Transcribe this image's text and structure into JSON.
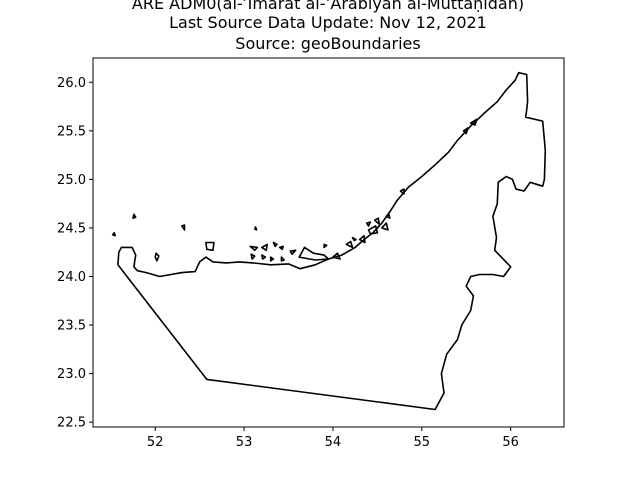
{
  "figure": {
    "title_lines": [
      "ARE ADM0(al-ʾImārāt al-ʿArabīyah al-Muttaḥidah)",
      "Last Source Data Update: Nov 12, 2021",
      "Source: geoBoundaries"
    ]
  },
  "chart_data": {
    "type": "map-outline",
    "xlim": [
      51.3,
      56.6
    ],
    "ylim": [
      22.45,
      26.25
    ],
    "x_ticks": [
      52,
      53,
      54,
      55,
      56
    ],
    "y_ticks": [
      22.5,
      23.0,
      23.5,
      24.0,
      24.5,
      25.0,
      25.5,
      26.0
    ],
    "x_tick_labels": [
      "52",
      "53",
      "54",
      "55",
      "56"
    ],
    "y_tick_labels": [
      "22.5",
      "23.0",
      "23.5",
      "24.0",
      "24.5",
      "25.0",
      "25.5",
      "26.0"
    ],
    "line_color": "#000000",
    "grid": false,
    "mainland": [
      [
        51.58,
        24.12
      ],
      [
        51.59,
        24.25
      ],
      [
        51.62,
        24.3
      ],
      [
        51.74,
        24.3
      ],
      [
        51.78,
        24.22
      ],
      [
        51.76,
        24.1
      ],
      [
        51.8,
        24.06
      ],
      [
        51.9,
        24.04
      ],
      [
        52.05,
        24.0
      ],
      [
        52.3,
        24.04
      ],
      [
        52.45,
        24.05
      ],
      [
        52.5,
        24.15
      ],
      [
        52.57,
        24.2
      ],
      [
        52.65,
        24.15
      ],
      [
        52.8,
        24.14
      ],
      [
        52.95,
        24.15
      ],
      [
        53.1,
        24.14
      ],
      [
        53.3,
        24.12
      ],
      [
        53.5,
        24.13
      ],
      [
        53.63,
        24.08
      ],
      [
        53.8,
        24.12
      ],
      [
        53.95,
        24.18
      ],
      [
        54.1,
        24.22
      ],
      [
        54.25,
        24.3
      ],
      [
        54.35,
        24.38
      ],
      [
        54.45,
        24.45
      ],
      [
        54.55,
        24.55
      ],
      [
        54.65,
        24.68
      ],
      [
        54.72,
        24.78
      ],
      [
        54.85,
        24.92
      ],
      [
        55.0,
        25.03
      ],
      [
        55.15,
        25.15
      ],
      [
        55.3,
        25.28
      ],
      [
        55.4,
        25.4
      ],
      [
        55.55,
        25.55
      ],
      [
        55.7,
        25.68
      ],
      [
        55.85,
        25.8
      ],
      [
        55.95,
        25.92
      ],
      [
        56.05,
        26.02
      ],
      [
        56.09,
        26.1
      ],
      [
        56.18,
        26.08
      ],
      [
        56.19,
        25.8
      ],
      [
        56.17,
        25.64
      ],
      [
        56.36,
        25.6
      ],
      [
        56.39,
        25.3
      ],
      [
        56.38,
        25.0
      ],
      [
        56.36,
        24.93
      ],
      [
        56.22,
        24.97
      ],
      [
        56.15,
        24.88
      ],
      [
        56.06,
        24.9
      ],
      [
        56.02,
        25.0
      ],
      [
        55.95,
        25.03
      ],
      [
        55.86,
        24.97
      ],
      [
        55.85,
        24.75
      ],
      [
        55.8,
        24.62
      ],
      [
        55.84,
        24.4
      ],
      [
        55.82,
        24.27
      ],
      [
        56.0,
        24.1
      ],
      [
        55.92,
        24.0
      ],
      [
        55.8,
        24.02
      ],
      [
        55.65,
        24.02
      ],
      [
        55.55,
        24.0
      ],
      [
        55.5,
        23.9
      ],
      [
        55.58,
        23.8
      ],
      [
        55.55,
        23.65
      ],
      [
        55.45,
        23.5
      ],
      [
        55.4,
        23.35
      ],
      [
        55.28,
        23.2
      ],
      [
        55.22,
        23.0
      ],
      [
        55.25,
        22.8
      ],
      [
        55.15,
        22.63
      ],
      [
        52.58,
        22.94
      ],
      [
        51.58,
        24.12
      ]
    ],
    "islands": [
      [
        [
          51.52,
          24.43
        ],
        [
          51.55,
          24.42
        ],
        [
          51.54,
          24.45
        ],
        [
          51.52,
          24.43
        ]
      ],
      [
        [
          51.75,
          24.6
        ],
        [
          51.78,
          24.61
        ],
        [
          51.76,
          24.64
        ],
        [
          51.75,
          24.6
        ]
      ],
      [
        [
          52.3,
          24.52
        ],
        [
          52.33,
          24.48
        ],
        [
          52.33,
          24.53
        ],
        [
          52.3,
          24.52
        ]
      ],
      [
        [
          52.01,
          24.24
        ],
        [
          52.04,
          24.21
        ],
        [
          52.02,
          24.16
        ],
        [
          52.0,
          24.2
        ],
        [
          52.01,
          24.24
        ]
      ],
      [
        [
          52.57,
          24.35
        ],
        [
          52.66,
          24.35
        ],
        [
          52.65,
          24.27
        ],
        [
          52.58,
          24.28
        ],
        [
          52.57,
          24.35
        ]
      ],
      [
        [
          53.07,
          24.31
        ],
        [
          53.15,
          24.3
        ],
        [
          53.12,
          24.27
        ],
        [
          53.07,
          24.31
        ]
      ],
      [
        [
          53.2,
          24.3
        ],
        [
          53.26,
          24.33
        ],
        [
          53.25,
          24.27
        ],
        [
          53.2,
          24.3
        ]
      ],
      [
        [
          53.33,
          24.35
        ],
        [
          53.37,
          24.33
        ],
        [
          53.35,
          24.31
        ],
        [
          53.33,
          24.35
        ]
      ],
      [
        [
          53.12,
          24.49
        ],
        [
          53.14,
          24.48
        ],
        [
          53.13,
          24.51
        ],
        [
          53.12,
          24.49
        ]
      ],
      [
        [
          53.4,
          24.3
        ],
        [
          53.44,
          24.31
        ],
        [
          53.43,
          24.28
        ],
        [
          53.4,
          24.3
        ]
      ],
      [
        [
          53.42,
          24.2
        ],
        [
          53.45,
          24.17
        ],
        [
          53.42,
          24.16
        ],
        [
          53.42,
          24.2
        ]
      ],
      [
        [
          53.52,
          24.26
        ],
        [
          53.58,
          24.27
        ],
        [
          53.54,
          24.23
        ],
        [
          53.52,
          24.26
        ]
      ],
      [
        [
          53.68,
          24.3
        ],
        [
          53.78,
          24.24
        ],
        [
          53.9,
          24.22
        ],
        [
          53.95,
          24.18
        ],
        [
          53.8,
          24.17
        ],
        [
          53.62,
          24.2
        ],
        [
          53.68,
          24.3
        ]
      ],
      [
        [
          53.9,
          24.33
        ],
        [
          53.93,
          24.32
        ],
        [
          53.9,
          24.3
        ],
        [
          53.9,
          24.33
        ]
      ],
      [
        [
          53.08,
          24.23
        ],
        [
          53.12,
          24.21
        ],
        [
          53.09,
          24.18
        ],
        [
          53.08,
          24.23
        ]
      ],
      [
        [
          53.2,
          24.22
        ],
        [
          53.24,
          24.2
        ],
        [
          53.21,
          24.18
        ],
        [
          53.2,
          24.22
        ]
      ],
      [
        [
          53.3,
          24.2
        ],
        [
          53.33,
          24.18
        ],
        [
          53.3,
          24.16
        ],
        [
          53.3,
          24.2
        ]
      ],
      [
        [
          54.0,
          24.2
        ],
        [
          54.05,
          24.24
        ],
        [
          54.08,
          24.18
        ],
        [
          54.0,
          24.2
        ]
      ],
      [
        [
          54.15,
          24.33
        ],
        [
          54.2,
          24.36
        ],
        [
          54.22,
          24.3
        ],
        [
          54.15,
          24.33
        ]
      ],
      [
        [
          54.22,
          24.4
        ],
        [
          54.26,
          24.38
        ],
        [
          54.24,
          24.37
        ],
        [
          54.22,
          24.4
        ]
      ],
      [
        [
          54.3,
          24.38
        ],
        [
          54.35,
          24.42
        ],
        [
          54.36,
          24.35
        ],
        [
          54.3,
          24.38
        ]
      ],
      [
        [
          54.4,
          24.48
        ],
        [
          54.48,
          24.52
        ],
        [
          54.5,
          24.45
        ],
        [
          54.42,
          24.44
        ],
        [
          54.4,
          24.48
        ]
      ],
      [
        [
          54.47,
          24.58
        ],
        [
          54.51,
          24.6
        ],
        [
          54.52,
          24.54
        ],
        [
          54.47,
          24.58
        ]
      ],
      [
        [
          54.55,
          24.5
        ],
        [
          54.6,
          24.55
        ],
        [
          54.62,
          24.48
        ],
        [
          54.55,
          24.5
        ]
      ],
      [
        [
          54.38,
          24.55
        ],
        [
          54.42,
          24.56
        ],
        [
          54.4,
          24.52
        ],
        [
          54.38,
          24.55
        ]
      ],
      [
        [
          54.6,
          24.62
        ],
        [
          54.63,
          24.64
        ],
        [
          54.64,
          24.6
        ],
        [
          54.6,
          24.62
        ]
      ],
      [
        [
          54.76,
          24.88
        ],
        [
          54.8,
          24.9
        ],
        [
          54.8,
          24.85
        ],
        [
          54.76,
          24.88
        ]
      ],
      [
        [
          55.47,
          25.5
        ],
        [
          55.52,
          25.53
        ],
        [
          55.5,
          25.47
        ],
        [
          55.47,
          25.5
        ]
      ],
      [
        [
          55.55,
          25.58
        ],
        [
          55.62,
          25.62
        ],
        [
          55.6,
          25.56
        ],
        [
          55.55,
          25.58
        ]
      ]
    ]
  }
}
